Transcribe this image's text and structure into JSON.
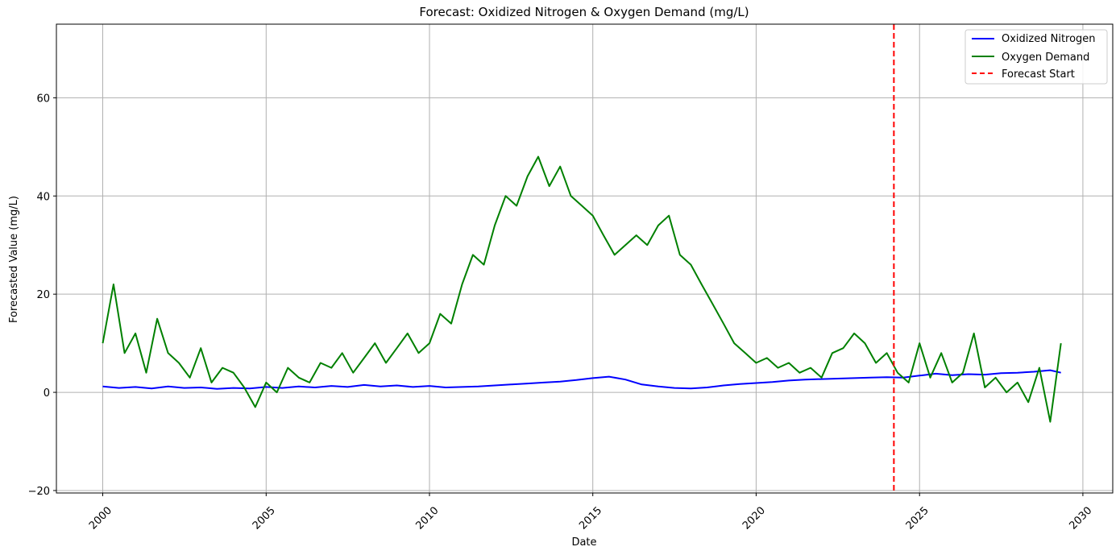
{
  "chart_data": {
    "type": "line",
    "title": "Forecast: Oxidized Nitrogen & Oxygen Demand (mg/L)",
    "xlabel": "Date",
    "ylabel": "Forecasted Value (mg/L)",
    "xlim": [
      "1998-08-01",
      "2030-12-01"
    ],
    "ylim": [
      -20.5,
      75
    ],
    "x_ticks": [
      "2000",
      "2005",
      "2010",
      "2015",
      "2020",
      "2025",
      "2030"
    ],
    "x_tick_rotation": 45,
    "y_ticks": [
      -20,
      0,
      20,
      40,
      60
    ],
    "grid": true,
    "legend_position": "top-right",
    "forecast_start": "2024-03-20",
    "series": [
      {
        "name": "Oxidized Nitrogen",
        "color": "#0000ff",
        "style": "solid",
        "x": [
          "2000-01",
          "2000-07",
          "2001-01",
          "2001-07",
          "2002-01",
          "2002-07",
          "2003-01",
          "2003-07",
          "2004-01",
          "2004-07",
          "2005-01",
          "2005-07",
          "2006-01",
          "2006-07",
          "2007-01",
          "2007-07",
          "2008-01",
          "2008-07",
          "2009-01",
          "2009-07",
          "2010-01",
          "2010-07",
          "2011-01",
          "2011-07",
          "2012-01",
          "2012-07",
          "2013-01",
          "2013-07",
          "2014-01",
          "2014-07",
          "2015-01",
          "2015-07",
          "2016-01",
          "2016-07",
          "2017-01",
          "2017-07",
          "2018-01",
          "2018-07",
          "2019-01",
          "2019-07",
          "2020-01",
          "2020-07",
          "2021-01",
          "2021-07",
          "2022-01",
          "2022-07",
          "2023-01",
          "2023-07",
          "2024-01",
          "2024-07",
          "2025-01",
          "2025-07",
          "2026-01",
          "2026-07",
          "2027-01",
          "2027-07",
          "2028-01",
          "2028-07",
          "2029-01",
          "2029-05"
        ],
        "values": [
          1.2,
          0.9,
          1.1,
          0.8,
          1.2,
          0.9,
          1.0,
          0.7,
          0.9,
          0.8,
          1.1,
          0.9,
          1.2,
          1.0,
          1.3,
          1.1,
          1.5,
          1.2,
          1.4,
          1.1,
          1.3,
          1.0,
          1.1,
          1.2,
          1.4,
          1.6,
          1.8,
          2.0,
          2.2,
          2.5,
          2.9,
          3.2,
          2.6,
          1.6,
          1.2,
          0.9,
          0.8,
          1.0,
          1.4,
          1.7,
          1.9,
          2.1,
          2.4,
          2.6,
          2.7,
          2.8,
          2.9,
          3.0,
          3.1,
          3.0,
          3.4,
          3.8,
          3.5,
          3.7,
          3.6,
          3.9,
          4.0,
          4.2,
          4.5,
          4.0
        ]
      },
      {
        "name": "Oxygen Demand",
        "color": "#008000",
        "style": "solid",
        "x": [
          "2000-01",
          "2000-05",
          "2000-09",
          "2001-01",
          "2001-05",
          "2001-09",
          "2002-01",
          "2002-05",
          "2002-09",
          "2003-01",
          "2003-05",
          "2003-09",
          "2004-01",
          "2004-05",
          "2004-09",
          "2005-01",
          "2005-05",
          "2005-09",
          "2006-01",
          "2006-05",
          "2006-09",
          "2007-01",
          "2007-05",
          "2007-09",
          "2008-01",
          "2008-05",
          "2008-09",
          "2009-01",
          "2009-05",
          "2009-09",
          "2010-01",
          "2010-05",
          "2010-09",
          "2011-01",
          "2011-05",
          "2011-09",
          "2012-01",
          "2012-05",
          "2012-09",
          "2013-01",
          "2013-05",
          "2013-09",
          "2014-01",
          "2014-05",
          "2014-09",
          "2015-01",
          "2015-05",
          "2015-09",
          "2016-01",
          "2016-05",
          "2016-09",
          "2017-01",
          "2017-05",
          "2017-09",
          "2018-01",
          "2018-05",
          "2018-09",
          "2019-01",
          "2019-05",
          "2019-09",
          "2020-01",
          "2020-05",
          "2020-09",
          "2021-01",
          "2021-05",
          "2021-09",
          "2022-01",
          "2022-05",
          "2022-09",
          "2023-01",
          "2023-05",
          "2023-09",
          "2024-01",
          "2024-05",
          "2024-09",
          "2025-01",
          "2025-05",
          "2025-09",
          "2026-01",
          "2026-05",
          "2026-09",
          "2027-01",
          "2027-05",
          "2027-09",
          "2028-01",
          "2028-05",
          "2028-09",
          "2029-01",
          "2029-05"
        ],
        "values": [
          10,
          22,
          8,
          12,
          4,
          15,
          8,
          6,
          3,
          9,
          2,
          5,
          4,
          1,
          -3,
          2,
          0,
          5,
          3,
          2,
          6,
          5,
          8,
          4,
          7,
          10,
          6,
          9,
          12,
          8,
          10,
          16,
          14,
          22,
          28,
          26,
          34,
          40,
          38,
          44,
          48,
          42,
          46,
          40,
          38,
          36,
          32,
          28,
          30,
          32,
          30,
          34,
          36,
          28,
          26,
          22,
          18,
          14,
          10,
          8,
          6,
          7,
          5,
          6,
          4,
          5,
          3,
          8,
          9,
          12,
          10,
          6,
          8,
          4,
          2,
          10,
          3,
          8,
          2,
          4,
          12,
          1,
          3,
          0,
          2,
          -2,
          5,
          -6,
          10
        ]
      }
    ]
  }
}
